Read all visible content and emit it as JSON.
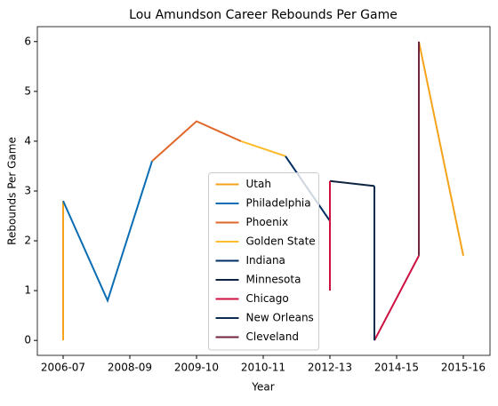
{
  "chart_data": {
    "type": "line",
    "title": "Lou Amundson Career Rebounds Per Game",
    "xlabel": "Year",
    "ylabel": "Rebounds Per Game",
    "xlim": [
      -0.58,
      9.6
    ],
    "ylim": [
      -0.3,
      6.3
    ],
    "xticks": [
      {
        "value": 0,
        "label": "2006-07"
      },
      {
        "value": 1.5,
        "label": "2008-09"
      },
      {
        "value": 3,
        "label": "2009-10"
      },
      {
        "value": 4.5,
        "label": "2010-11"
      },
      {
        "value": 6,
        "label": "2012-13"
      },
      {
        "value": 7.5,
        "label": "2014-15"
      },
      {
        "value": 9,
        "label": "2015-16"
      }
    ],
    "yticks": [
      0,
      1,
      2,
      3,
      4,
      5,
      6
    ],
    "legend": "lower center",
    "series": [
      {
        "name": "Utah",
        "color": "#f5a31a",
        "x": [
          0,
          0,
          7,
          8,
          9
        ],
        "values": [
          0,
          2.8,
          null,
          6.0,
          1.7
        ]
      },
      {
        "name": "Philadelphia",
        "color": "#0a6db3",
        "x": [
          0,
          1,
          2
        ],
        "values": [
          2.8,
          0.8,
          3.6
        ]
      },
      {
        "name": "Phoenix",
        "color": "#e0672a",
        "x": [
          2,
          3,
          4
        ],
        "values": [
          3.6,
          4.4,
          4.0
        ]
      },
      {
        "name": "Golden State",
        "color": "#fbbc2d",
        "x": [
          4,
          5
        ],
        "values": [
          4.0,
          3.7
        ]
      },
      {
        "name": "Indiana",
        "color": "#002d62",
        "x": [
          5,
          6
        ],
        "values": [
          3.7,
          2.4
        ]
      },
      {
        "name": "Minnesota",
        "color": "#0c2340",
        "x": [
          6,
          7
        ],
        "values": [
          3.2,
          3.1
        ]
      },
      {
        "name": "Chicago",
        "color": "#ce1141",
        "x": [
          6,
          6,
          6,
          7,
          8
        ],
        "values": [
          1.0,
          3.2,
          null,
          0,
          1.7
        ]
      },
      {
        "name": "New Orleans",
        "color": "#0c2c4e",
        "x": [
          7,
          7
        ],
        "values": [
          3.1,
          0
        ]
      },
      {
        "name": "Cleveland",
        "color": "#6f263d",
        "x": [
          8,
          8
        ],
        "values": [
          1.7,
          6.0
        ]
      }
    ]
  }
}
